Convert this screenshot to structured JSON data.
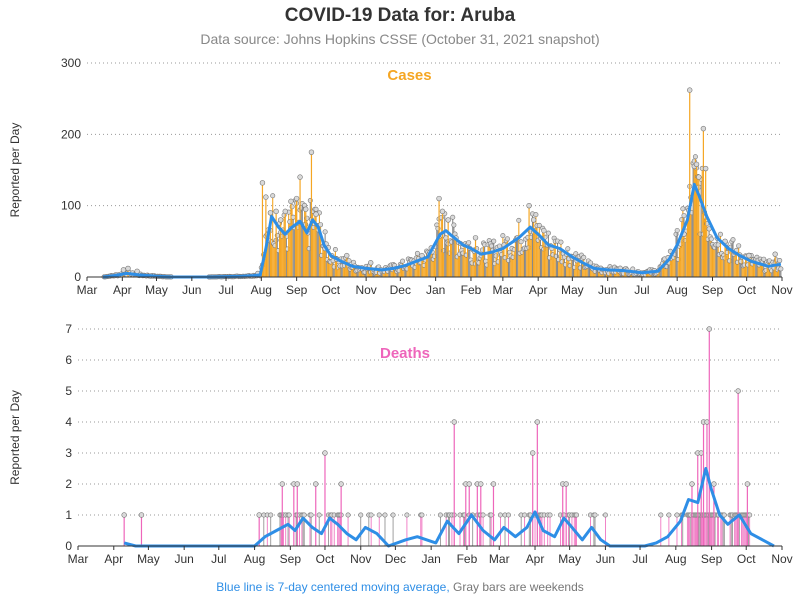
{
  "header": {
    "title": "COVID-19 Data for: Aruba",
    "subtitle": "Data source: Johns Hopkins CSSE (October 31, 2021 snapshot)"
  },
  "footer": {
    "blue_note": "Blue line is 7-day centered moving average,",
    "gray_note": "Gray bars are weekends"
  },
  "colors": {
    "cases": "#f5a623",
    "deaths": "#ee66bb",
    "average": "#2e8ee6",
    "weekend": "#888888"
  },
  "chart_data": [
    {
      "type": "bar",
      "title": "Cases",
      "xlabel": "",
      "ylabel": "Reported per Day",
      "ylim": [
        0,
        300
      ],
      "yticks": [
        0,
        100,
        200,
        300
      ],
      "xticks": [
        "Mar",
        "Apr",
        "May",
        "Jun",
        "Jul",
        "Aug",
        "Sep",
        "Oct",
        "Nov",
        "Dec",
        "Jan",
        "Feb",
        "Mar",
        "Apr",
        "May",
        "Jun",
        "Jul",
        "Aug",
        "Sep",
        "Oct",
        "Nov"
      ],
      "x_range": [
        "2020-03-01",
        "2021-11-01"
      ],
      "grid": "horizontal dotted",
      "series": [
        {
          "name": "7-day centered moving average",
          "points": [
            [
              "2020-03-15",
              0
            ],
            [
              "2020-03-25",
              2
            ],
            [
              "2020-04-05",
              5
            ],
            [
              "2020-04-15",
              3
            ],
            [
              "2020-05-01",
              1
            ],
            [
              "2020-05-15",
              0
            ],
            [
              "2020-06-15",
              0
            ],
            [
              "2020-07-15",
              1
            ],
            [
              "2020-07-25",
              2
            ],
            [
              "2020-07-31",
              3
            ],
            [
              "2020-08-05",
              40
            ],
            [
              "2020-08-10",
              85
            ],
            [
              "2020-08-16",
              70
            ],
            [
              "2020-08-22",
              60
            ],
            [
              "2020-08-28",
              70
            ],
            [
              "2020-09-04",
              78
            ],
            [
              "2020-09-10",
              62
            ],
            [
              "2020-09-15",
              80
            ],
            [
              "2020-09-20",
              70
            ],
            [
              "2020-09-25",
              45
            ],
            [
              "2020-10-01",
              30
            ],
            [
              "2020-10-10",
              22
            ],
            [
              "2020-10-20",
              15
            ],
            [
              "2020-11-01",
              12
            ],
            [
              "2020-11-15",
              10
            ],
            [
              "2020-11-25",
              12
            ],
            [
              "2020-12-05",
              16
            ],
            [
              "2020-12-15",
              22
            ],
            [
              "2020-12-25",
              28
            ],
            [
              "2021-01-05",
              60
            ],
            [
              "2021-01-10",
              65
            ],
            [
              "2021-01-15",
              58
            ],
            [
              "2021-01-25",
              45
            ],
            [
              "2021-02-01",
              40
            ],
            [
              "2021-02-10",
              32
            ],
            [
              "2021-02-20",
              35
            ],
            [
              "2021-03-01",
              40
            ],
            [
              "2021-03-15",
              55
            ],
            [
              "2021-03-25",
              70
            ],
            [
              "2021-04-01",
              60
            ],
            [
              "2021-04-10",
              45
            ],
            [
              "2021-04-20",
              40
            ],
            [
              "2021-05-01",
              28
            ],
            [
              "2021-05-10",
              20
            ],
            [
              "2021-05-20",
              12
            ],
            [
              "2021-06-01",
              10
            ],
            [
              "2021-06-15",
              9
            ],
            [
              "2021-07-01",
              6
            ],
            [
              "2021-07-15",
              8
            ],
            [
              "2021-07-25",
              25
            ],
            [
              "2021-08-01",
              45
            ],
            [
              "2021-08-10",
              80
            ],
            [
              "2021-08-16",
              130
            ],
            [
              "2021-08-20",
              115
            ],
            [
              "2021-08-27",
              85
            ],
            [
              "2021-09-05",
              55
            ],
            [
              "2021-09-15",
              40
            ],
            [
              "2021-09-25",
              30
            ],
            [
              "2021-10-05",
              22
            ],
            [
              "2021-10-20",
              15
            ],
            [
              "2021-10-31",
              18
            ]
          ]
        },
        {
          "name": "Daily reported cases",
          "points": [
            [
              "2020-04-02",
              10
            ],
            [
              "2020-04-06",
              12
            ],
            [
              "2020-04-14",
              8
            ],
            [
              "2020-07-29",
              5
            ],
            [
              "2020-08-02",
              132
            ],
            [
              "2020-08-05",
              112
            ],
            [
              "2020-08-09",
              90
            ],
            [
              "2020-08-14",
              92
            ],
            [
              "2020-08-18",
              80
            ],
            [
              "2020-08-22",
              92
            ],
            [
              "2020-08-27",
              106
            ],
            [
              "2020-09-01",
              110
            ],
            [
              "2020-09-04",
              140
            ],
            [
              "2020-09-09",
              95
            ],
            [
              "2020-09-14",
              175
            ],
            [
              "2020-09-18",
              88
            ],
            [
              "2020-09-26",
              40
            ],
            [
              "2020-10-06",
              25
            ],
            [
              "2020-10-15",
              30
            ],
            [
              "2020-11-05",
              20
            ],
            [
              "2020-12-20",
              30
            ],
            [
              "2021-01-04",
              110
            ],
            [
              "2021-01-07",
              92
            ],
            [
              "2021-01-12",
              80
            ],
            [
              "2021-02-05",
              55
            ],
            [
              "2021-03-24",
              100
            ],
            [
              "2021-03-28",
              80
            ],
            [
              "2021-04-06",
              65
            ],
            [
              "2021-08-07",
              60
            ],
            [
              "2021-08-12",
              262
            ],
            [
              "2021-08-16",
              155
            ],
            [
              "2021-08-18",
              158
            ],
            [
              "2021-08-20",
              140
            ],
            [
              "2021-08-24",
              208
            ],
            [
              "2021-08-26",
              152
            ],
            [
              "2021-09-12",
              50
            ],
            [
              "2021-10-03",
              30
            ],
            [
              "2021-10-26",
              32
            ]
          ]
        }
      ]
    },
    {
      "type": "bar",
      "title": "Deaths",
      "xlabel": "",
      "ylabel": "Reported per Day",
      "ylim": [
        0,
        7
      ],
      "yticks": [
        0,
        1,
        2,
        3,
        4,
        5,
        6,
        7
      ],
      "xticks": [
        "Mar",
        "Apr",
        "May",
        "Jun",
        "Jul",
        "Aug",
        "Sep",
        "Oct",
        "Nov",
        "Dec",
        "Jan",
        "Feb",
        "Mar",
        "Apr",
        "May",
        "Jun",
        "Jul",
        "Aug",
        "Sep",
        "Oct",
        "Nov"
      ],
      "x_range": [
        "2020-03-01",
        "2021-11-01"
      ],
      "grid": "horizontal dotted",
      "series": [
        {
          "name": "7-day centered moving average",
          "points": [
            [
              "2020-04-10",
              0.1
            ],
            [
              "2020-04-20",
              0
            ],
            [
              "2020-08-01",
              0
            ],
            [
              "2020-08-10",
              0.3
            ],
            [
              "2020-08-20",
              0.5
            ],
            [
              "2020-08-30",
              0.7
            ],
            [
              "2020-09-05",
              0.5
            ],
            [
              "2020-09-12",
              0.9
            ],
            [
              "2020-09-20",
              0.6
            ],
            [
              "2020-09-28",
              0.4
            ],
            [
              "2020-10-05",
              0.9
            ],
            [
              "2020-10-12",
              0.7
            ],
            [
              "2020-10-20",
              0.4
            ],
            [
              "2020-10-28",
              0.2
            ],
            [
              "2020-11-05",
              0.6
            ],
            [
              "2020-11-15",
              0.4
            ],
            [
              "2020-11-25",
              0
            ],
            [
              "2020-12-10",
              0.2
            ],
            [
              "2020-12-20",
              0.3
            ],
            [
              "2021-01-05",
              0.1
            ],
            [
              "2021-01-15",
              0.8
            ],
            [
              "2021-01-25",
              0.4
            ],
            [
              "2021-02-05",
              1.0
            ],
            [
              "2021-02-15",
              0.5
            ],
            [
              "2021-02-25",
              0.2
            ],
            [
              "2021-03-05",
              0.6
            ],
            [
              "2021-03-15",
              0.3
            ],
            [
              "2021-03-25",
              0.6
            ],
            [
              "2021-04-01",
              1.1
            ],
            [
              "2021-04-08",
              0.5
            ],
            [
              "2021-04-18",
              0.3
            ],
            [
              "2021-04-26",
              0.9
            ],
            [
              "2021-05-03",
              0.6
            ],
            [
              "2021-05-12",
              0.2
            ],
            [
              "2021-05-20",
              0.6
            ],
            [
              "2021-05-28",
              0.2
            ],
            [
              "2021-06-05",
              0
            ],
            [
              "2021-07-05",
              0
            ],
            [
              "2021-07-15",
              0.1
            ],
            [
              "2021-07-25",
              0.3
            ],
            [
              "2021-08-05",
              0.8
            ],
            [
              "2021-08-12",
              1.5
            ],
            [
              "2021-08-20",
              1.4
            ],
            [
              "2021-08-27",
              2.5
            ],
            [
              "2021-09-01",
              1.8
            ],
            [
              "2021-09-08",
              1.0
            ],
            [
              "2021-09-15",
              0.7
            ],
            [
              "2021-09-25",
              1.0
            ],
            [
              "2021-10-05",
              0.4
            ],
            [
              "2021-10-15",
              0.2
            ],
            [
              "2021-10-25",
              0
            ]
          ]
        },
        {
          "name": "Daily reported deaths",
          "points": [
            [
              "2020-04-10",
              1
            ],
            [
              "2020-04-25",
              1
            ],
            [
              "2020-08-05",
              1
            ],
            [
              "2020-08-25",
              2
            ],
            [
              "2020-09-04",
              2
            ],
            [
              "2020-09-07",
              2
            ],
            [
              "2020-09-23",
              2
            ],
            [
              "2020-10-01",
              3
            ],
            [
              "2020-10-15",
              2
            ],
            [
              "2021-01-21",
              4
            ],
            [
              "2021-01-31",
              2
            ],
            [
              "2021-02-03",
              2
            ],
            [
              "2021-02-10",
              2
            ],
            [
              "2021-02-13",
              2
            ],
            [
              "2021-02-24",
              2
            ],
            [
              "2021-03-30",
              3
            ],
            [
              "2021-04-03",
              4
            ],
            [
              "2021-04-25",
              2
            ],
            [
              "2021-04-28",
              2
            ],
            [
              "2021-08-15",
              2
            ],
            [
              "2021-08-20",
              3
            ],
            [
              "2021-08-23",
              3
            ],
            [
              "2021-08-25",
              4
            ],
            [
              "2021-08-28",
              4
            ],
            [
              "2021-08-30",
              7
            ],
            [
              "2021-09-03",
              2
            ],
            [
              "2021-09-24",
              5
            ],
            [
              "2021-10-02",
              2
            ]
          ]
        }
      ]
    }
  ]
}
